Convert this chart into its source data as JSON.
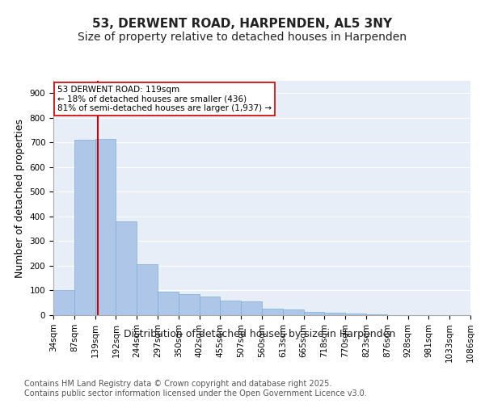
{
  "title_line1": "53, DERWENT ROAD, HARPENDEN, AL5 3NY",
  "title_line2": "Size of property relative to detached houses in Harpenden",
  "xlabel": "Distribution of detached houses by size in Harpenden",
  "ylabel": "Number of detached properties",
  "bin_labels": [
    "34sqm",
    "87sqm",
    "139sqm",
    "192sqm",
    "244sqm",
    "297sqm",
    "350sqm",
    "402sqm",
    "455sqm",
    "507sqm",
    "560sqm",
    "613sqm",
    "665sqm",
    "718sqm",
    "770sqm",
    "823sqm",
    "876sqm",
    "928sqm",
    "981sqm",
    "1033sqm",
    "1086sqm"
  ],
  "bar_values": [
    100,
    710,
    715,
    380,
    205,
    95,
    85,
    75,
    58,
    55,
    25,
    22,
    12,
    10,
    8,
    3,
    1,
    0,
    0,
    0
  ],
  "bar_color": "#aec6e8",
  "bar_edge_color": "#7bafd4",
  "vline_color": "#cc0000",
  "annotation_text": "53 DERWENT ROAD: 119sqm\n← 18% of detached houses are smaller (436)\n81% of semi-detached houses are larger (1,937) →",
  "annotation_box_color": "#ffffff",
  "annotation_box_edge": "#cc0000",
  "ylim": [
    0,
    950
  ],
  "yticks": [
    0,
    100,
    200,
    300,
    400,
    500,
    600,
    700,
    800,
    900
  ],
  "background_color": "#e8eef8",
  "footer_text": "Contains HM Land Registry data © Crown copyright and database right 2025.\nContains public sector information licensed under the Open Government Licence v3.0.",
  "title_fontsize": 11,
  "subtitle_fontsize": 10,
  "axis_label_fontsize": 9,
  "tick_fontsize": 7.5,
  "footer_fontsize": 7,
  "vline_position": 1.615
}
